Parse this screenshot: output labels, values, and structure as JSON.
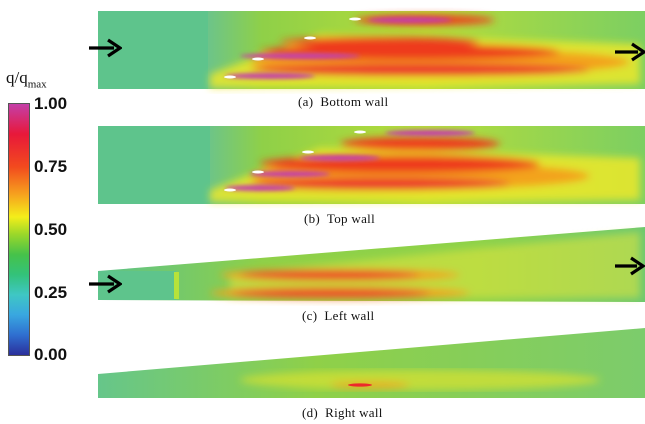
{
  "colorbar": {
    "title_main": "q/q",
    "title_sub": "max",
    "ticks": [
      "1.00",
      "0.75",
      "0.50",
      "0.25",
      "0.00"
    ],
    "colors": [
      "#c43fa8",
      "#e8183a",
      "#f6a21e",
      "#f4ee1a",
      "#46c24a",
      "#3fc7c4",
      "#2b2f9b"
    ]
  },
  "panels": [
    {
      "caption": "(a)  Bottom wall"
    },
    {
      "caption": "(b)  Top wall"
    },
    {
      "caption": "(c)  Left wall"
    },
    {
      "caption": "(d)  Right wall"
    }
  ],
  "icons": [
    "flow-arrow-icon"
  ]
}
